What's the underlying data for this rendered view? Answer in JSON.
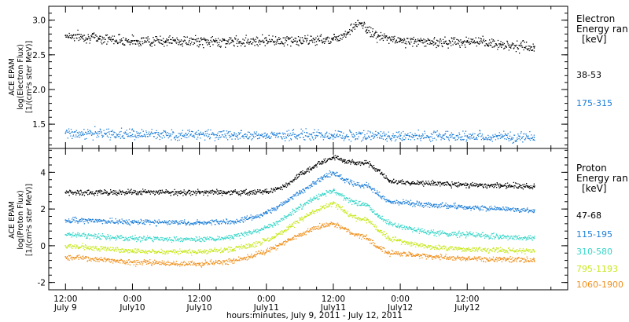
{
  "chart_data": [
    {
      "type": "scatter",
      "panel": "electron",
      "ylabel": [
        "ACE EPAM",
        "log(Electron Flux)",
        "[1/(cm²s ster MeV)]"
      ],
      "ylim": [
        1.15,
        3.2
      ],
      "yticks": [
        1.5,
        2.0,
        2.5,
        3.0
      ],
      "ytick_labels": [
        "1.5",
        "2.0",
        "2.5",
        "3.0"
      ],
      "legend_title": [
        "Electron",
        "Energy ran",
        "[keV]"
      ],
      "legend_placement": "right",
      "series": [
        {
          "name": "38-53",
          "color": "#000000",
          "x": [
            0,
            6,
            12,
            18,
            24,
            30,
            36,
            42,
            48,
            50,
            52,
            53,
            54,
            56,
            60,
            66,
            72,
            78,
            84
          ],
          "y": [
            2.78,
            2.74,
            2.7,
            2.7,
            2.69,
            2.69,
            2.71,
            2.7,
            2.73,
            2.8,
            2.93,
            2.95,
            2.86,
            2.76,
            2.7,
            2.68,
            2.69,
            2.65,
            2.6
          ]
        },
        {
          "name": "175-315",
          "color": "#1e7fd8",
          "x": [
            0,
            12,
            24,
            36,
            48,
            60,
            72,
            84
          ],
          "y": [
            1.37,
            1.35,
            1.35,
            1.34,
            1.34,
            1.33,
            1.32,
            1.31
          ]
        }
      ]
    },
    {
      "type": "scatter",
      "panel": "proton",
      "ylabel": [
        "ACE EPAM",
        "log(Proton Flux)",
        "[1/(cm²s ster MeV)]"
      ],
      "ylim": [
        -2.4,
        5.3
      ],
      "yticks": [
        -2,
        0,
        2,
        4
      ],
      "ytick_labels": [
        "-2",
        "0",
        "2",
        "4"
      ],
      "legend_title": [
        "Proton",
        "Energy ran",
        "[keV]"
      ],
      "legend_placement": "right",
      "series": [
        {
          "name": "47-68",
          "color": "#000000",
          "x": [
            0,
            12,
            24,
            30,
            33,
            36,
            38,
            40,
            42,
            44,
            46,
            48,
            50,
            52,
            54,
            56,
            58,
            62,
            66,
            72,
            78,
            84
          ],
          "y": [
            2.9,
            2.9,
            2.9,
            2.9,
            2.9,
            2.95,
            3.1,
            3.4,
            3.9,
            4.2,
            4.6,
            4.8,
            4.6,
            4.5,
            4.5,
            4.1,
            3.5,
            3.4,
            3.4,
            3.3,
            3.3,
            3.2
          ]
        },
        {
          "name": "115-195",
          "color": "#1e7fd8",
          "x": [
            0,
            12,
            24,
            30,
            33,
            36,
            38,
            40,
            42,
            44,
            46,
            48,
            50,
            52,
            54,
            56,
            58,
            62,
            66,
            72,
            78,
            84
          ],
          "y": [
            1.4,
            1.3,
            1.25,
            1.3,
            1.5,
            1.8,
            2.1,
            2.5,
            2.9,
            3.3,
            3.7,
            4.0,
            3.6,
            3.3,
            3.3,
            2.8,
            2.4,
            2.3,
            2.2,
            2.1,
            2.0,
            1.9
          ]
        },
        {
          "name": "310-580",
          "color": "#35d6c8",
          "x": [
            0,
            12,
            24,
            30,
            33,
            36,
            38,
            40,
            42,
            44,
            46,
            48,
            50,
            52,
            54,
            56,
            58,
            62,
            66,
            72,
            78,
            84
          ],
          "y": [
            0.6,
            0.4,
            0.35,
            0.45,
            0.7,
            1.0,
            1.3,
            1.7,
            2.1,
            2.5,
            2.8,
            3.0,
            2.6,
            2.3,
            2.2,
            1.6,
            1.2,
            0.9,
            0.7,
            0.6,
            0.5,
            0.4
          ]
        },
        {
          "name": "795-1193",
          "color": "#c8e81c",
          "x": [
            0,
            12,
            24,
            30,
            33,
            36,
            38,
            40,
            42,
            44,
            46,
            48,
            50,
            52,
            54,
            56,
            58,
            62,
            66,
            72,
            78,
            84
          ],
          "y": [
            0.0,
            -0.3,
            -0.35,
            -0.2,
            0.0,
            0.3,
            0.6,
            1.0,
            1.4,
            1.8,
            2.1,
            2.3,
            1.9,
            1.5,
            1.4,
            0.8,
            0.4,
            0.1,
            -0.1,
            -0.2,
            -0.25,
            -0.3
          ]
        },
        {
          "name": "1060-1900",
          "color": "#f0901c",
          "x": [
            0,
            12,
            24,
            30,
            33,
            36,
            38,
            40,
            42,
            44,
            46,
            48,
            50,
            52,
            54,
            56,
            58,
            62,
            66,
            72,
            78,
            84
          ],
          "y": [
            -0.6,
            -0.9,
            -1.0,
            -0.8,
            -0.6,
            -0.3,
            0.0,
            0.3,
            0.6,
            0.9,
            1.1,
            1.2,
            0.9,
            0.6,
            0.4,
            -0.1,
            -0.4,
            -0.5,
            -0.6,
            -0.7,
            -0.75,
            -0.8
          ]
        }
      ]
    }
  ],
  "x_axis": {
    "xlim": [
      -3,
      90
    ],
    "ticks": [
      {
        "x": 0,
        "time": "12:00",
        "date": "July 9"
      },
      {
        "x": 12,
        "time": "0:00",
        "date": "July10"
      },
      {
        "x": 24,
        "time": "12:00",
        "date": "July10"
      },
      {
        "x": 36,
        "time": "0:00",
        "date": "July11"
      },
      {
        "x": 48,
        "time": "12:00",
        "date": "July11"
      },
      {
        "x": 60,
        "time": "0:00",
        "date": "July12"
      },
      {
        "x": 72,
        "time": "12:00",
        "date": "July12"
      }
    ],
    "label": "hours:minutes, July  9, 2011 - July 12, 2011"
  }
}
